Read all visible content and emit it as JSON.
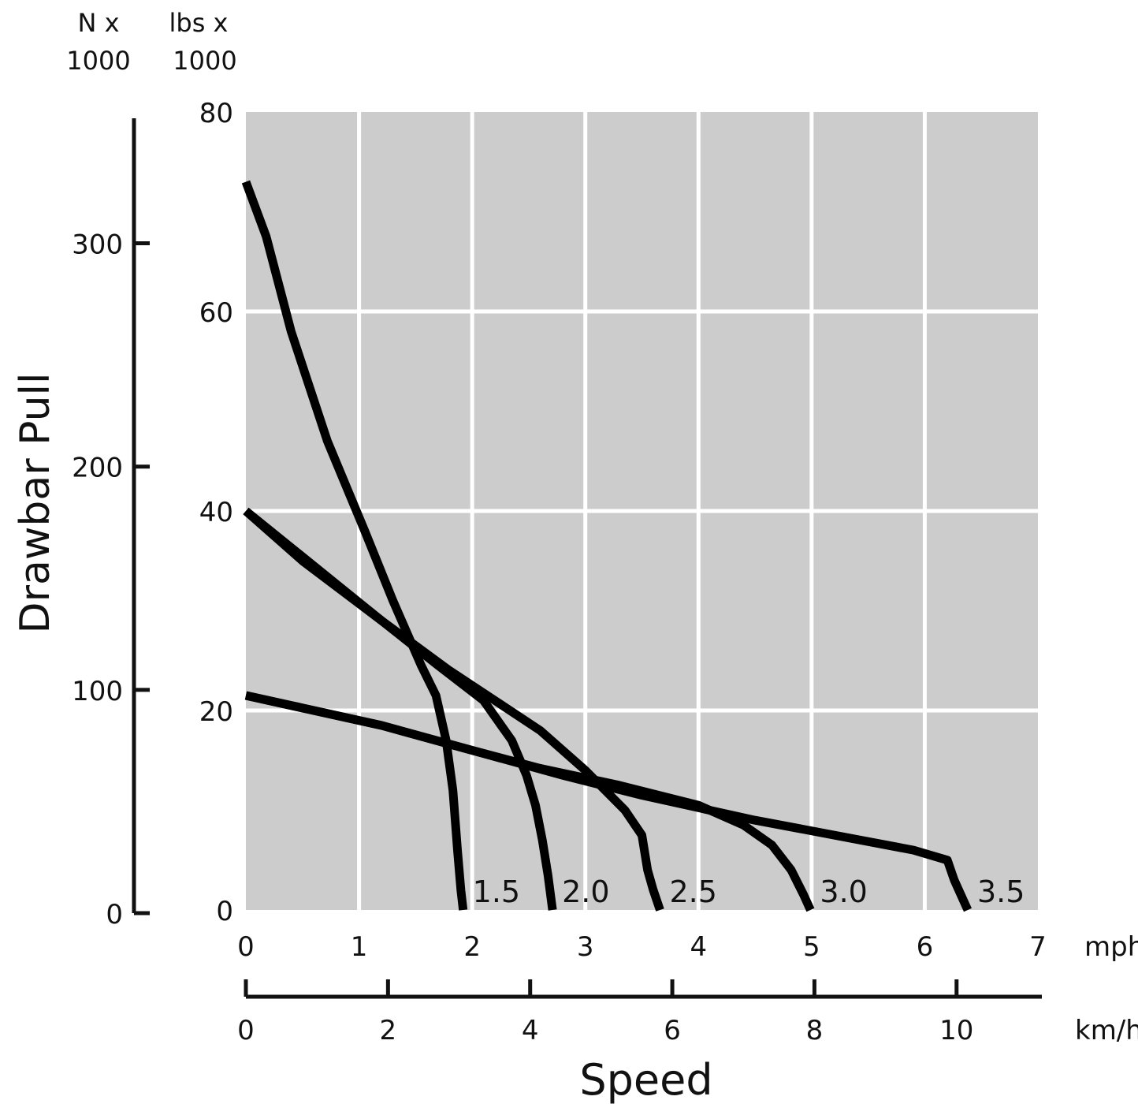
{
  "chart_data": {
    "type": "line",
    "title": "",
    "xlabel": "Speed",
    "ylabel": "Drawbar Pull",
    "x_unit_primary": "mph",
    "x_unit_secondary": "km/h",
    "y_unit_primary_l1": "lbs x",
    "y_unit_primary_l2": "1000",
    "y_unit_secondary_l1": "N x",
    "y_unit_secondary_l2": "1000",
    "xlim": [
      0,
      7
    ],
    "ylim": [
      0,
      80
    ],
    "x_ticks": [
      "0",
      "1",
      "2",
      "3",
      "4",
      "5",
      "6",
      "7"
    ],
    "y_ticks": [
      "0",
      "20",
      "40",
      "60",
      "80"
    ],
    "kmh_ticks": [
      {
        "value": 0,
        "label": "0"
      },
      {
        "value": 2,
        "label": "2"
      },
      {
        "value": 4,
        "label": "4"
      },
      {
        "value": 6,
        "label": "6"
      },
      {
        "value": 8,
        "label": "8"
      },
      {
        "value": 10,
        "label": "10"
      }
    ],
    "kmh_axis_max": 11.2,
    "newton_ticks": [
      {
        "value": 0,
        "label": "0"
      },
      {
        "value": 100,
        "label": "100"
      },
      {
        "value": 200,
        "label": "200"
      },
      {
        "value": 300,
        "label": "300"
      }
    ],
    "newton_axis_max": 356,
    "grid": true,
    "colors": {
      "background": "#cccccc",
      "grid": "#ffffff",
      "line": "#000000",
      "text": "#111111"
    },
    "series": [
      {
        "name": "1.5",
        "label": "1.5",
        "points": [
          [
            0,
            73
          ],
          [
            0.18,
            67.5
          ],
          [
            0.4,
            58
          ],
          [
            0.72,
            47
          ],
          [
            1.05,
            38
          ],
          [
            1.3,
            31
          ],
          [
            1.55,
            24.5
          ],
          [
            1.68,
            21.5
          ],
          [
            1.77,
            17
          ],
          [
            1.83,
            12
          ],
          [
            1.87,
            6
          ],
          [
            1.9,
            2
          ],
          [
            1.92,
            0
          ]
        ]
      },
      {
        "name": "2.0",
        "label": "2.0",
        "points": [
          [
            0,
            40
          ],
          [
            0.5,
            35
          ],
          [
            1.2,
            29
          ],
          [
            1.7,
            24.5
          ],
          [
            2.1,
            21
          ],
          [
            2.35,
            17
          ],
          [
            2.48,
            13.5
          ],
          [
            2.56,
            10.5
          ],
          [
            2.62,
            7
          ],
          [
            2.67,
            3.5
          ],
          [
            2.71,
            0
          ]
        ]
      },
      {
        "name": "2.5",
        "label": "2.5",
        "points": [
          [
            0,
            40
          ],
          [
            1.2,
            29
          ],
          [
            1.8,
            24
          ],
          [
            2.2,
            21
          ],
          [
            2.6,
            18
          ],
          [
            3.0,
            14
          ],
          [
            3.35,
            10
          ],
          [
            3.5,
            7.5
          ],
          [
            3.55,
            4
          ],
          [
            3.6,
            2
          ],
          [
            3.66,
            0
          ]
        ]
      },
      {
        "name": "3.0",
        "label": "3.0",
        "points": [
          [
            0,
            21.5
          ],
          [
            1.2,
            18.5
          ],
          [
            2.0,
            16
          ],
          [
            2.6,
            14.2
          ],
          [
            3.3,
            12.5
          ],
          [
            4.0,
            10.5
          ],
          [
            4.4,
            8.5
          ],
          [
            4.65,
            6.5
          ],
          [
            4.82,
            4
          ],
          [
            4.93,
            1.5
          ],
          [
            4.99,
            0
          ]
        ]
      },
      {
        "name": "3.5",
        "label": "3.5",
        "points": [
          [
            0,
            21.5
          ],
          [
            1.2,
            18.5
          ],
          [
            2.0,
            16
          ],
          [
            2.8,
            13.5
          ],
          [
            3.5,
            11.5
          ],
          [
            4.5,
            9
          ],
          [
            5.2,
            7.5
          ],
          [
            5.9,
            6
          ],
          [
            6.2,
            5
          ],
          [
            6.26,
            3
          ],
          [
            6.34,
            1
          ],
          [
            6.38,
            0
          ]
        ]
      }
    ]
  }
}
